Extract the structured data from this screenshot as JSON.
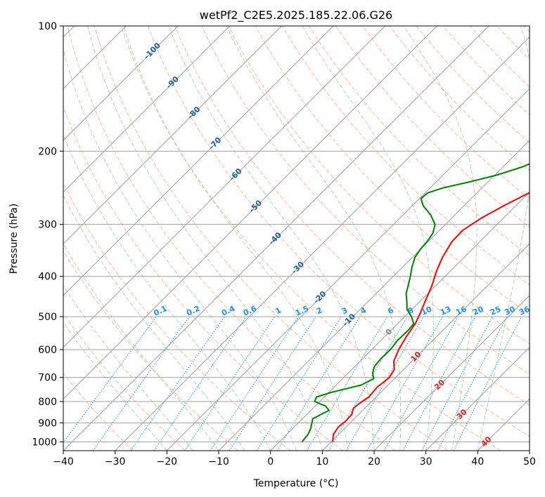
{
  "chart_data": {
    "type": "line",
    "title": "wetPf2_C2E5.2025.185.22.06.G26",
    "xlabel": "Temperature (°C)",
    "ylabel": "Pressure (hPa)",
    "xlim": [
      -40,
      50
    ],
    "ylim": [
      1050,
      100
    ],
    "y_scale": "log",
    "grid": true,
    "x_ticks": [
      -40,
      -30,
      -20,
      -10,
      0,
      10,
      20,
      30,
      40,
      50
    ],
    "y_ticks": [
      100,
      200,
      300,
      400,
      500,
      600,
      700,
      800,
      900,
      1000
    ],
    "series": [
      {
        "role": "temperature",
        "color": "#ff0000",
        "points": [
          {
            "p": 1000,
            "t": 10.3
          },
          {
            "p": 960,
            "t": 9.0
          },
          {
            "p": 920,
            "t": 8.5
          },
          {
            "p": 890,
            "t": 8.8
          },
          {
            "p": 860,
            "t": 8.7
          },
          {
            "p": 830,
            "t": 7.8
          },
          {
            "p": 810,
            "t": 8.0
          },
          {
            "p": 780,
            "t": 8.6
          },
          {
            "p": 740,
            "t": 8.3
          },
          {
            "p": 700,
            "t": 8.8
          },
          {
            "p": 670,
            "t": 8.2
          },
          {
            "p": 640,
            "t": 6.5
          },
          {
            "p": 600,
            "t": 5.2
          },
          {
            "p": 560,
            "t": 4.2
          },
          {
            "p": 520,
            "t": 3.4
          },
          {
            "p": 490,
            "t": 2.3
          },
          {
            "p": 460,
            "t": 1.0
          },
          {
            "p": 420,
            "t": -0.8
          },
          {
            "p": 390,
            "t": -2.6
          },
          {
            "p": 360,
            "t": -4.2
          },
          {
            "p": 330,
            "t": -5.4
          },
          {
            "p": 310,
            "t": -5.5
          },
          {
            "p": 290,
            "t": -4.3
          },
          {
            "p": 270,
            "t": -2.3
          },
          {
            "p": 250,
            "t": 0.3
          },
          {
            "p": 230,
            "t": 2.8
          },
          {
            "p": 210,
            "t": 4.8
          },
          {
            "p": 195,
            "t": 6.3
          },
          {
            "p": 180,
            "t": 8.6
          },
          {
            "p": 170,
            "t": 9.7
          },
          {
            "p": 160,
            "t": 10.6
          },
          {
            "p": 150,
            "t": 12.4
          },
          {
            "p": 140,
            "t": 14.3
          },
          {
            "p": 130,
            "t": 15.6
          },
          {
            "p": 125,
            "t": 15.8
          },
          {
            "p": 118,
            "t": 17.6
          },
          {
            "p": 110,
            "t": 21.0
          },
          {
            "p": 100,
            "t": 24.3
          }
        ]
      },
      {
        "role": "dewpoint",
        "color": "#008000",
        "points": [
          {
            "p": 1000,
            "t": 4.4
          },
          {
            "p": 960,
            "t": 4.1
          },
          {
            "p": 930,
            "t": 3.5
          },
          {
            "p": 900,
            "t": 2.6
          },
          {
            "p": 880,
            "t": 2.0
          },
          {
            "p": 860,
            "t": 2.7
          },
          {
            "p": 840,
            "t": 3.5
          },
          {
            "p": 820,
            "t": 2.0
          },
          {
            "p": 800,
            "t": -1.0
          },
          {
            "p": 780,
            "t": -1.5
          },
          {
            "p": 760,
            "t": 0.5
          },
          {
            "p": 730,
            "t": 4.8
          },
          {
            "p": 705,
            "t": 6.0
          },
          {
            "p": 685,
            "t": 4.8
          },
          {
            "p": 660,
            "t": 3.8
          },
          {
            "p": 630,
            "t": 3.5
          },
          {
            "p": 600,
            "t": 3.6
          },
          {
            "p": 570,
            "t": 3.2
          },
          {
            "p": 540,
            "t": 3.3
          },
          {
            "p": 520,
            "t": 3.1
          },
          {
            "p": 500,
            "t": 1.3
          },
          {
            "p": 480,
            "t": -1.0
          },
          {
            "p": 460,
            "t": -2.5
          },
          {
            "p": 440,
            "t": -4.2
          },
          {
            "p": 420,
            "t": -5.4
          },
          {
            "p": 400,
            "t": -6.7
          },
          {
            "p": 380,
            "t": -8.2
          },
          {
            "p": 360,
            "t": -9.5
          },
          {
            "p": 345,
            "t": -10.0
          },
          {
            "p": 330,
            "t": -10.2
          },
          {
            "p": 315,
            "t": -10.7
          },
          {
            "p": 300,
            "t": -12.0
          },
          {
            "p": 285,
            "t": -14.6
          },
          {
            "p": 270,
            "t": -18.0
          },
          {
            "p": 260,
            "t": -19.7
          },
          {
            "p": 252,
            "t": -19.5
          },
          {
            "p": 245,
            "t": -17.5
          },
          {
            "p": 237,
            "t": -13.5
          },
          {
            "p": 228,
            "t": -9.5
          },
          {
            "p": 218,
            "t": -6.2
          },
          {
            "p": 210,
            "t": -4.4
          },
          {
            "p": 200,
            "t": -3.5
          },
          {
            "p": 190,
            "t": -3.7
          },
          {
            "p": 180,
            "t": -4.2
          },
          {
            "p": 170,
            "t": -4.4
          },
          {
            "p": 160,
            "t": -3.6
          },
          {
            "p": 150,
            "t": -3.0
          },
          {
            "p": 140,
            "t": -2.5
          },
          {
            "p": 132,
            "t": -1.6
          },
          {
            "p": 125,
            "t": -0.8
          },
          {
            "p": 118,
            "t": 0.5
          },
          {
            "p": 110,
            "t": 1.6
          },
          {
            "p": 104,
            "t": 2.3
          },
          {
            "p": 100,
            "t": 2.8
          }
        ]
      }
    ],
    "annotations": {
      "isotherm_labels": [
        {
          "text": "-100",
          "t": -100,
          "p": 115
        },
        {
          "text": "-90",
          "t": -90,
          "p": 137
        },
        {
          "text": "-80",
          "t": -80,
          "p": 162
        },
        {
          "text": "-70",
          "t": -70,
          "p": 192
        },
        {
          "text": "-60",
          "t": -60,
          "p": 228
        },
        {
          "text": "-50",
          "t": -50,
          "p": 272
        },
        {
          "text": "-40",
          "t": -40,
          "p": 325
        },
        {
          "text": "-30",
          "t": -30,
          "p": 382
        },
        {
          "text": "-20",
          "t": -20,
          "p": 450
        },
        {
          "text": "-10",
          "t": -10,
          "p": 510
        },
        {
          "text": "0",
          "t": 0,
          "p": 545
        },
        {
          "text": "10",
          "t": 10,
          "p": 625
        },
        {
          "text": "20",
          "t": 20,
          "p": 730
        },
        {
          "text": "30",
          "t": 30,
          "p": 860
        },
        {
          "text": "40",
          "t": 40,
          "p": 1000
        }
      ],
      "mixing_ratio_labels": [
        "0.1",
        "0.2",
        "0.4",
        "0.6",
        "1",
        "1.5",
        "2",
        "3",
        "4",
        "6",
        "8",
        "10",
        "13",
        "16",
        "20",
        "25",
        "30",
        "36"
      ]
    },
    "colors": {
      "temperature": "#ff0000",
      "dewpoint": "#008000",
      "isotherm": "#a0a0a0",
      "dry_adiabat": "#ffa07a",
      "moist_adiabat": "#90c890",
      "mixing_ratio": "#1e90ff",
      "isotherm_label_cold": "#1f5f9f",
      "isotherm_label_zero": "#808080",
      "isotherm_label_warm": "#d62728"
    }
  }
}
